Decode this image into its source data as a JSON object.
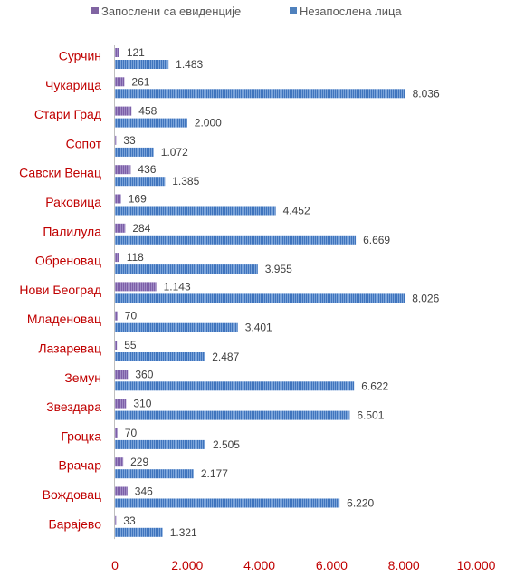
{
  "chart_data": {
    "type": "bar",
    "orientation": "horizontal",
    "categories": [
      "Сурчин",
      "Чукарица",
      "Стари Град",
      "Сопот",
      "Савски Венац",
      "Раковица",
      "Палилула",
      "Обреновац",
      "Нови Београд",
      "Младеновац",
      "Лазаревац",
      "Земун",
      "Звездара",
      "Гроцка",
      "Врачар",
      "Вождовац",
      "Барајево"
    ],
    "series": [
      {
        "name": "Запослени са евиденције",
        "color": "#8064a2",
        "values": [
          121,
          261,
          458,
          33,
          436,
          169,
          284,
          118,
          1143,
          70,
          55,
          360,
          310,
          70,
          229,
          346,
          33
        ],
        "value_labels": [
          "121",
          "261",
          "458",
          "33",
          "436",
          "169",
          "284",
          "118",
          "1.143",
          "70",
          "55",
          "360",
          "310",
          "70",
          "229",
          "346",
          "33"
        ]
      },
      {
        "name": "Незапослена лица",
        "color": "#4f81bd",
        "values": [
          1483,
          8036,
          2000,
          1072,
          1385,
          4452,
          6669,
          3955,
          8026,
          3401,
          2487,
          6622,
          6501,
          2505,
          2177,
          6220,
          1321
        ],
        "value_labels": [
          "1.483",
          "8.036",
          "2.000",
          "1.072",
          "1.385",
          "4.452",
          "6.669",
          "3.955",
          "8.026",
          "3.401",
          "2.487",
          "6.622",
          "6.501",
          "2.505",
          "2.177",
          "6.220",
          "1.321"
        ]
      }
    ],
    "xlim": [
      0,
      10000
    ],
    "xticks": [
      0,
      2000,
      4000,
      6000,
      8000,
      10000
    ],
    "xtick_labels": [
      "0",
      "2.000",
      "4.000",
      "6.000",
      "8.000",
      "10.000"
    ],
    "legend_position": "top",
    "grid": false
  }
}
